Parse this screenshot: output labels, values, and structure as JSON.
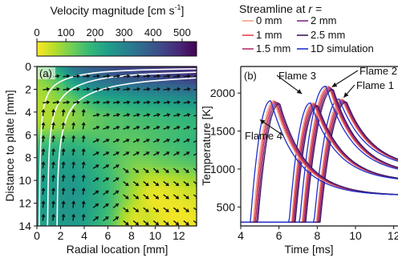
{
  "chart_data": [
    {
      "type": "heatmap",
      "colorbar": {
        "title": "Velocity magnitude [cm s",
        "title_sup": "-1",
        "title_end": "]",
        "ticks": [
          "0",
          "100",
          "200",
          "300",
          "400",
          "500"
        ],
        "range": [
          0,
          550
        ],
        "colormap": [
          "#fde725",
          "#b5de2b",
          "#6ece58",
          "#35b779",
          "#1f9e89",
          "#26828e",
          "#31688e",
          "#3e4989",
          "#482878",
          "#440154"
        ]
      },
      "panel_label": "(a)",
      "xlabel": "Radial location [mm]",
      "ylabel": "Distance to plate [mm]",
      "x_ticks": [
        0,
        2,
        4,
        6,
        8,
        10,
        12
      ],
      "y_ticks": [
        0,
        2,
        4,
        6,
        8,
        10,
        12,
        14
      ],
      "xlim": [
        0,
        13.5
      ],
      "ylim": [
        0,
        14
      ],
      "y_inverted": true,
      "field": [
        [
          120,
          160,
          260,
          340,
          380,
          400,
          420,
          440,
          440,
          450,
          460,
          470,
          480,
          500
        ],
        [
          90,
          120,
          180,
          260,
          320,
          350,
          370,
          390,
          400,
          410,
          420,
          430,
          440,
          460
        ],
        [
          70,
          90,
          130,
          180,
          230,
          260,
          280,
          290,
          300,
          310,
          320,
          330,
          340,
          350
        ],
        [
          60,
          70,
          90,
          120,
          160,
          190,
          200,
          210,
          220,
          230,
          235,
          240,
          250,
          260
        ],
        [
          60,
          65,
          75,
          95,
          120,
          140,
          150,
          160,
          170,
          175,
          180,
          190,
          195,
          200
        ],
        [
          80,
          85,
          90,
          110,
          130,
          140,
          150,
          150,
          155,
          160,
          165,
          170,
          175,
          180
        ],
        [
          150,
          160,
          170,
          175,
          170,
          160,
          150,
          140,
          140,
          150,
          160,
          170,
          180,
          190
        ],
        [
          200,
          210,
          220,
          220,
          200,
          180,
          160,
          140,
          130,
          140,
          150,
          160,
          170,
          180
        ],
        [
          220,
          230,
          240,
          240,
          220,
          190,
          160,
          130,
          110,
          110,
          120,
          130,
          140,
          150
        ],
        [
          230,
          240,
          250,
          250,
          230,
          200,
          170,
          130,
          90,
          60,
          60,
          70,
          80,
          90
        ],
        [
          240,
          250,
          260,
          260,
          240,
          210,
          170,
          120,
          70,
          30,
          20,
          30,
          40,
          50
        ],
        [
          240,
          250,
          260,
          260,
          240,
          210,
          170,
          110,
          60,
          20,
          10,
          15,
          20,
          30
        ],
        [
          240,
          250,
          260,
          260,
          240,
          200,
          160,
          80,
          30,
          40,
          20,
          10,
          10,
          20
        ],
        [
          230,
          240,
          250,
          250,
          230,
          190,
          150,
          60,
          20,
          40,
          20,
          10,
          10,
          15
        ]
      ],
      "streamlines": [
        [
          [
            0.2,
            14
          ],
          [
            0.3,
            6
          ],
          [
            0.6,
            3
          ],
          [
            1.5,
            1.4
          ],
          [
            4,
            0.6
          ],
          [
            8,
            0.3
          ],
          [
            13.5,
            0.2
          ]
        ],
        [
          [
            0.9,
            14
          ],
          [
            1.0,
            7
          ],
          [
            1.4,
            4
          ],
          [
            2.4,
            2.2
          ],
          [
            4.5,
            1.2
          ],
          [
            8,
            0.7
          ],
          [
            13.5,
            0.5
          ]
        ],
        [
          [
            1.7,
            14
          ],
          [
            1.8,
            8
          ],
          [
            2.3,
            4.8
          ],
          [
            3.3,
            3.0
          ],
          [
            5.5,
            1.9
          ],
          [
            9,
            1.3
          ],
          [
            13.5,
            1.0
          ]
        ]
      ]
    },
    {
      "type": "line",
      "panel_label": "(b)",
      "xlabel": "Time [ms]",
      "ylabel": "Temperature [K]",
      "x_ticks": [
        4,
        6,
        8,
        10,
        12
      ],
      "y_ticks": [
        500,
        1000,
        1500,
        2000
      ],
      "xlim": [
        4,
        12.6
      ],
      "ylim": [
        250,
        2350
      ],
      "legend": {
        "title": "Streamline at",
        "title_var": "r",
        "title_end": "=",
        "placement": "top"
      },
      "series": [
        {
          "name": "0 mm",
          "color": "#f4a582"
        },
        {
          "name": "1 mm",
          "color": "#e8434f"
        },
        {
          "name": "1.5 mm",
          "color": "#b6306a"
        },
        {
          "name": "2 mm",
          "color": "#7d2a82"
        },
        {
          "name": "2.5 mm",
          "color": "#3d1a5a"
        },
        {
          "name": "1D simulation",
          "color": "#1f2fd0"
        }
      ],
      "flames": [
        {
          "name": "Flame 1",
          "label": "Flame 1",
          "rise": 7.95,
          "peak_t": 9.3,
          "peak_T": 1920,
          "tail_T": 1000,
          "spread": 0.05
        },
        {
          "name": "Flame 2",
          "label": "Flame 2",
          "rise": 7.2,
          "peak_t": 8.6,
          "peak_T": 2090,
          "tail_T": 920,
          "spread": 0.05
        },
        {
          "name": "Flame 3",
          "label": "Flame 3",
          "rise": 6.65,
          "peak_t": 7.8,
          "peak_T": 1870,
          "tail_T": 830,
          "spread": 0.05
        },
        {
          "name": "Flame 4",
          "label": "Flame 4",
          "rise": 4.65,
          "peak_t": 5.75,
          "peak_T": 1900,
          "tail_T": 650,
          "spread": 0.06
        }
      ],
      "baseline_T": 300
    }
  ]
}
